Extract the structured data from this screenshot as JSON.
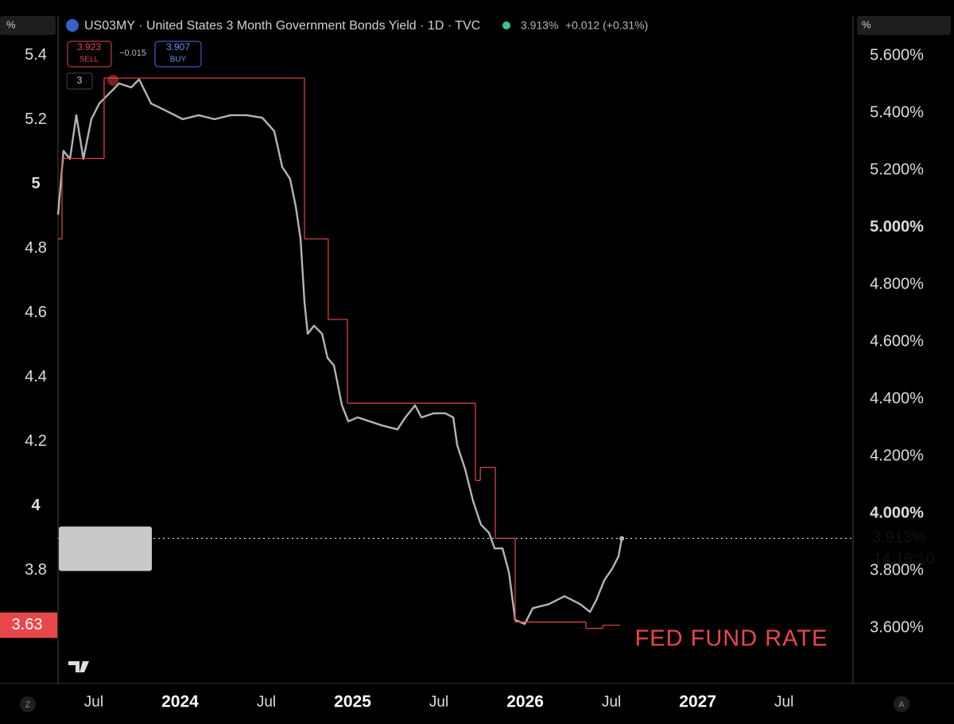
{
  "header": {
    "symbol": "US03MY · United States 3 Month Government Bonds Yield · 1D · TVC",
    "last": "3.913%",
    "change": "+0.012 (+0.31%)",
    "sell": "3.923",
    "sell_label": "SELL",
    "spread": "−0.015",
    "buy": "3.907",
    "buy_label": "BUY",
    "indicators": "3"
  },
  "ui": {
    "left_unit": "%",
    "right_unit": "%",
    "left_button": "Z",
    "right_button": "A"
  },
  "chart_data": {
    "type": "line",
    "xlim": [
      2023.293,
      2027.9
    ],
    "xticks": [
      {
        "value": 2023.5,
        "label": "Jul"
      },
      2024,
      {
        "value": 2024.5,
        "label": "Jul"
      },
      2025,
      {
        "value": 2025.5,
        "label": "Jul"
      },
      2026,
      {
        "value": 2026.5,
        "label": "Jul"
      },
      2027,
      {
        "value": 2027.5,
        "label": "Jul"
      }
    ],
    "ylim": [
      3.449,
      5.523
    ],
    "yticks": [
      3.8,
      4,
      4.2,
      4.4,
      4.6,
      4.8,
      5,
      5.2,
      5.4
    ],
    "y2lim": [
      3.406,
      5.739
    ],
    "y2ticks": [
      {
        "value": 3.6,
        "label": "3.600%"
      },
      {
        "value": 3.8,
        "label": "3.800%"
      },
      {
        "value": 4.0,
        "label": "4.000%"
      },
      {
        "value": 4.2,
        "label": "4.200%"
      },
      {
        "value": 4.4,
        "label": "4.400%"
      },
      {
        "value": 4.6,
        "label": "4.600%"
      },
      {
        "value": 4.8,
        "label": "4.800%"
      },
      {
        "value": 5.0,
        "label": "5.000%"
      },
      {
        "value": 5.2,
        "label": "5.200%"
      },
      {
        "value": 5.4,
        "label": "5.400%"
      },
      {
        "value": 5.6,
        "label": "5.600%"
      }
    ],
    "grid": false,
    "series": [
      {
        "color": "#b4b4b4",
        "axis": "y2",
        "x": [
          2023.293,
          2023.325,
          2023.362,
          2023.399,
          2023.44,
          2023.486,
          2023.532,
          2023.601,
          2023.647,
          2023.717,
          2023.763,
          2023.832,
          2023.924,
          2024.016,
          2024.108,
          2024.2,
          2024.293,
          2024.385,
          2024.477,
          2024.546,
          2024.592,
          2024.638,
          2024.671,
          2024.698,
          2024.721,
          2024.74,
          2024.776,
          2024.823,
          2024.855,
          2024.892,
          2024.938,
          2024.975,
          2025.03,
          2025.099,
          2025.168,
          2025.26,
          2025.306,
          2025.362,
          2025.399,
          2025.468,
          2025.537,
          2025.583,
          2025.606,
          2025.652,
          2025.698,
          2025.744,
          2025.79,
          2025.823,
          2025.869,
          2025.906,
          2025.942,
          2025.998,
          2026.044,
          2026.136,
          2026.228,
          2026.32,
          2026.376,
          2026.412,
          2026.459,
          2026.505,
          2026.541,
          2026.56
        ],
        "values": [
          5.044,
          5.267,
          5.239,
          5.392,
          5.239,
          5.378,
          5.433,
          5.475,
          5.503,
          5.489,
          5.517,
          5.433,
          5.406,
          5.378,
          5.392,
          5.378,
          5.392,
          5.392,
          5.383,
          5.336,
          5.211,
          5.169,
          5.072,
          4.961,
          4.739,
          4.628,
          4.656,
          4.628,
          4.544,
          4.517,
          4.378,
          4.322,
          4.336,
          4.322,
          4.308,
          4.294,
          4.336,
          4.378,
          4.336,
          4.35,
          4.35,
          4.336,
          4.239,
          4.156,
          4.044,
          3.961,
          3.933,
          3.878,
          3.878,
          3.794,
          3.628,
          3.614,
          3.669,
          3.683,
          3.711,
          3.683,
          3.656,
          3.697,
          3.767,
          3.808,
          3.85,
          3.913
        ]
      },
      {
        "name": "FED FUND RATE",
        "color": "#e8474c",
        "axis": "y",
        "step": "after",
        "x": [
          2023.293,
          2023.316,
          2023.56,
          2024.721,
          2024.859,
          2024.97,
          2025.712,
          2025.74,
          2025.827,
          2025.942,
          2026.352,
          2026.45,
          2026.551
        ],
        "values": [
          4.83,
          5.08,
          5.33,
          4.83,
          4.58,
          4.32,
          4.08,
          4.12,
          3.9,
          3.64,
          3.62,
          3.63,
          3.63
        ]
      }
    ],
    "price_label": {
      "value": 3.913,
      "label": "3.913%",
      "time": "14:16:10"
    },
    "rate_label": 3.63
  }
}
